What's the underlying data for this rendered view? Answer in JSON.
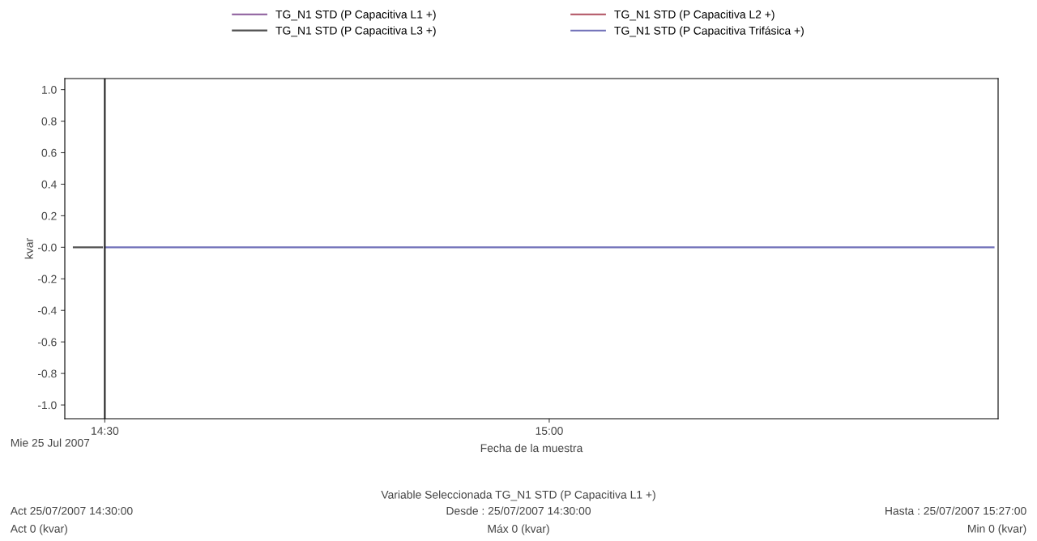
{
  "chart_data": {
    "type": "line",
    "xlabel": "Fecha de la muestra",
    "ylabel": "kvar",
    "series": [
      {
        "name": "TG_N1 STD (P Capacitiva L1 +)",
        "color": "#8a5a9a",
        "values": [
          null,
          null
        ]
      },
      {
        "name": "TG_N1 STD (P Capacitiva L2 +)",
        "color": "#b05060",
        "values": [
          null,
          null
        ]
      },
      {
        "name": "TG_N1 STD (P Capacitiva L3 +)",
        "color": "#505050",
        "x": [
          14.465,
          14.497
        ],
        "values": [
          0,
          0
        ]
      },
      {
        "name": "TG_N1 STD (P Capacitiva Trifásica +)",
        "color": "#7070b8",
        "x": [
          14.5,
          15.5
        ],
        "values": [
          0,
          0
        ]
      }
    ],
    "xlim": [
      14.455,
      15.505
    ],
    "xticks": [
      {
        "value": 14.5,
        "label": "14:30"
      },
      {
        "value": 15.0,
        "label": "15:00"
      }
    ],
    "ylim": [
      -1.087,
      1.07
    ],
    "yticks": [
      {
        "value": 1.0,
        "label": "1.0"
      },
      {
        "value": 0.8,
        "label": "0.8"
      },
      {
        "value": 0.6,
        "label": "0.6"
      },
      {
        "value": 0.4,
        "label": "0.4"
      },
      {
        "value": 0.2,
        "label": "0.2"
      },
      {
        "value": 0,
        "label": "-0.0"
      },
      {
        "value": -0.2,
        "label": "-0.2"
      },
      {
        "value": -0.4,
        "label": "-0.4"
      },
      {
        "value": -0.6,
        "label": "-0.6"
      },
      {
        "value": -0.8,
        "label": "-0.8"
      },
      {
        "value": -1.0,
        "label": "-1.0"
      }
    ],
    "ref_lines": [
      {
        "axis": "x",
        "value": 14.5,
        "color": "#202020"
      }
    ],
    "grid": false,
    "legend": "top",
    "marker": "none",
    "line_style": "solid",
    "annotations": [
      "Mie 25 Jul 2007",
      "Variable Seleccionada TG_N1 STD (P Capacitiva L1 +)",
      "Act 25/07/2007 14:30:00",
      "Act 0 (kvar)",
      "Desde : 25/07/2007 14:30:00",
      "Máx 0 (kvar)",
      "Hasta : 25/07/2007 15:27:00",
      "Min 0 (kvar)"
    ]
  }
}
